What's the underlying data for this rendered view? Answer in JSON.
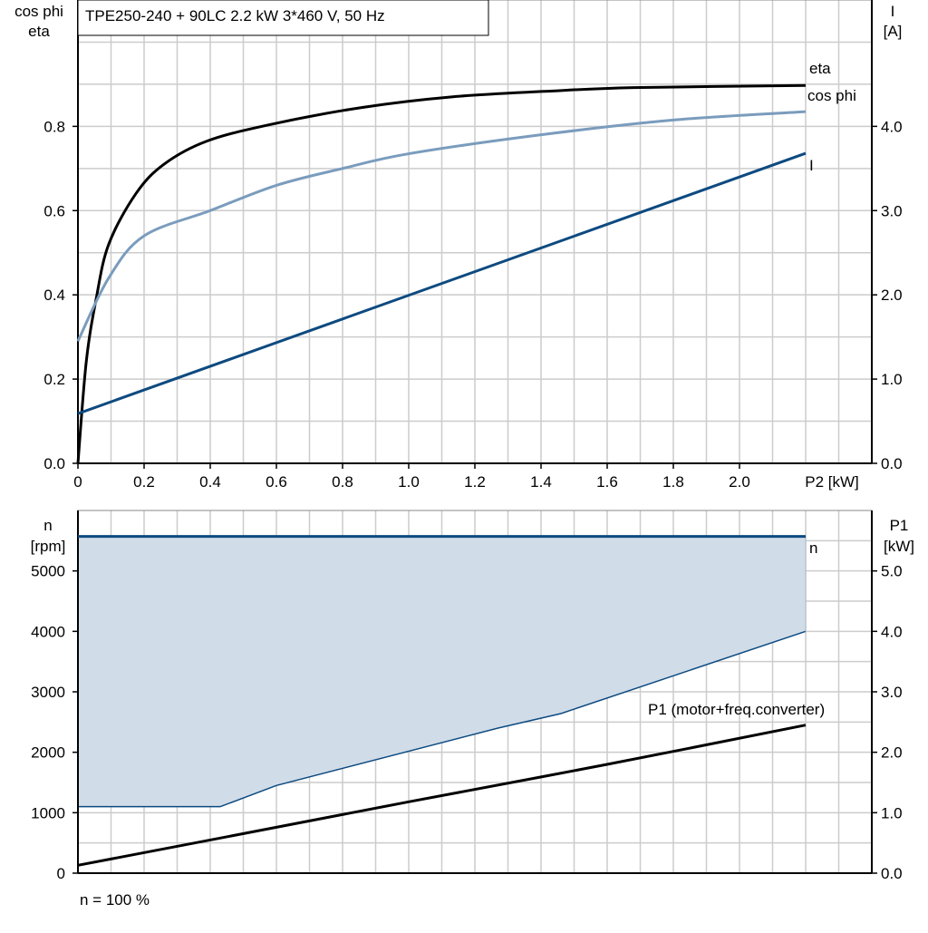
{
  "chart_data": [
    {
      "type": "line",
      "title": "TPE250-240 + 90LC   2.2 kW   3*460 V, 50 Hz",
      "xlabel": "P2 [kW]",
      "ylabel_left": [
        "cos phi",
        "eta"
      ],
      "ylabel_right": [
        "I",
        "[A]"
      ],
      "xlim": [
        0,
        2.4
      ],
      "ylim_left": [
        0,
        1.1
      ],
      "ylim_right": [
        0,
        5.5
      ],
      "grid": true,
      "x_ticks": [
        "0",
        "0.2",
        "0.4",
        "0.6",
        "0.8",
        "1.0",
        "1.2",
        "1.4",
        "1.6",
        "1.8",
        "2.0"
      ],
      "x_tick_values": [
        0,
        0.2,
        0.4,
        0.6,
        0.8,
        1.0,
        1.2,
        1.4,
        1.6,
        1.8,
        2.0
      ],
      "y_ticks_left": [
        "0.0",
        "0.2",
        "0.4",
        "0.6",
        "0.8"
      ],
      "y_tick_values_left": [
        0,
        0.2,
        0.4,
        0.6,
        0.8
      ],
      "y_ticks_right": [
        "0.0",
        "1.0",
        "2.0",
        "3.0",
        "4.0"
      ],
      "y_tick_values_right": [
        0,
        1,
        2,
        3,
        4
      ],
      "series": [
        {
          "name": "eta",
          "axis": "left",
          "color": "#000000",
          "x": [
            0,
            0.025,
            0.055,
            0.093,
            0.175,
            0.26,
            0.39,
            0.585,
            0.86,
            1.13,
            1.41,
            1.68,
            2.2
          ],
          "y": [
            0,
            0.24,
            0.39,
            0.52,
            0.64,
            0.71,
            0.765,
            0.805,
            0.845,
            0.87,
            0.883,
            0.892,
            0.897
          ]
        },
        {
          "name": "cos phi",
          "axis": "left",
          "color": "#7a9cbd",
          "x": [
            0,
            0.093,
            0.2,
            0.4,
            0.6,
            0.8,
            1.0,
            1.4,
            1.8,
            2.2
          ],
          "y": [
            0.29,
            0.44,
            0.54,
            0.6,
            0.66,
            0.7,
            0.735,
            0.78,
            0.815,
            0.835
          ]
        },
        {
          "name": "I",
          "axis": "right",
          "color": "#0d4a80",
          "x": [
            0,
            2.2
          ],
          "y": [
            0.59,
            3.68
          ]
        }
      ]
    },
    {
      "type": "line",
      "xlim": [
        0,
        2.4
      ],
      "ylabel_left": [
        "n",
        "[rpm]"
      ],
      "ylabel_right": [
        "P1",
        "[kW]"
      ],
      "ylim_left": [
        0,
        6000
      ],
      "ylim_right": [
        0,
        6.0
      ],
      "grid": true,
      "y_ticks_left": [
        "0",
        "1000",
        "2000",
        "3000",
        "4000",
        "5000"
      ],
      "y_tick_values_left": [
        0,
        1000,
        2000,
        3000,
        4000,
        5000
      ],
      "y_ticks_right": [
        "0.0",
        "1.0",
        "2.0",
        "3.0",
        "4.0",
        "5.0"
      ],
      "y_tick_values_right": [
        0,
        1,
        2,
        3,
        4,
        5
      ],
      "footnote": "n = 100 %",
      "fill_region": {
        "color": "#d0dce8",
        "edge_color": "#0d4a80",
        "upper_rpm": 5570,
        "lower_x": [
          0,
          0.43,
          0.6,
          1.27,
          1.46,
          2.2
        ],
        "lower_p1": [
          1.1,
          1.1,
          1.45,
          2.4,
          2.64,
          4.0
        ]
      },
      "series": [
        {
          "name": "n",
          "axis": "left",
          "color": "#0d4a80",
          "x": [
            0,
            2.2
          ],
          "y": [
            5570,
            5570
          ]
        },
        {
          "name": "P1 (motor+freq.converter)",
          "axis": "right",
          "color": "#000000",
          "x": [
            0,
            0.43,
            1.0,
            1.6,
            2.2
          ],
          "y": [
            0.13,
            0.58,
            1.18,
            1.8,
            2.45
          ]
        }
      ]
    }
  ]
}
